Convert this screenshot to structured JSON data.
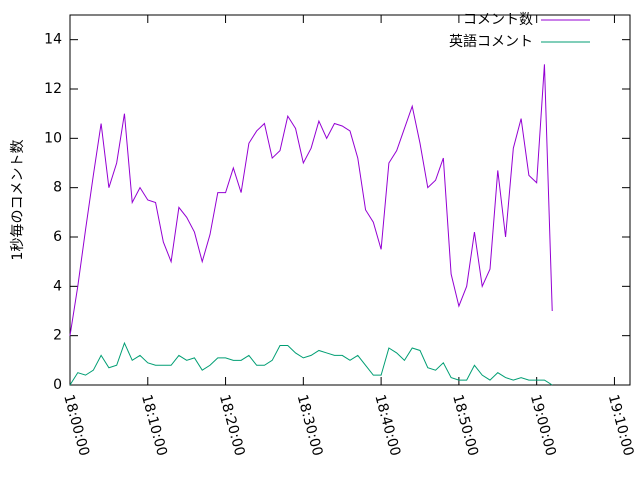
{
  "chart_data": {
    "type": "line",
    "y_label": "1秒毎のコメント数",
    "x": [
      "18:00:00",
      "18:01:00",
      "18:02:00",
      "18:03:00",
      "18:04:00",
      "18:05:00",
      "18:06:00",
      "18:07:00",
      "18:08:00",
      "18:09:00",
      "18:10:00",
      "18:11:00",
      "18:12:00",
      "18:13:00",
      "18:14:00",
      "18:15:00",
      "18:16:00",
      "18:17:00",
      "18:18:00",
      "18:19:00",
      "18:20:00",
      "18:21:00",
      "18:22:00",
      "18:23:00",
      "18:24:00",
      "18:25:00",
      "18:26:00",
      "18:27:00",
      "18:28:00",
      "18:29:00",
      "18:30:00",
      "18:31:00",
      "18:32:00",
      "18:33:00",
      "18:34:00",
      "18:35:00",
      "18:36:00",
      "18:37:00",
      "18:38:00",
      "18:39:00",
      "18:40:00",
      "18:41:00",
      "18:42:00",
      "18:43:00",
      "18:44:00",
      "18:45:00",
      "18:46:00",
      "18:47:00",
      "18:48:00",
      "18:49:00",
      "18:50:00",
      "18:51:00",
      "18:52:00",
      "18:53:00",
      "18:54:00",
      "18:55:00",
      "18:56:00",
      "18:57:00",
      "18:58:00",
      "18:59:00",
      "19:00:00",
      "19:01:00",
      "19:02:00"
    ],
    "series": [
      {
        "name": "コメント数",
        "color": "#9400d3",
        "values": [
          2.0,
          4.0,
          6.3,
          8.5,
          10.6,
          8.0,
          9.0,
          11.0,
          7.4,
          8.0,
          7.5,
          7.4,
          5.8,
          5.0,
          7.2,
          6.8,
          6.2,
          5.0,
          6.1,
          7.8,
          7.8,
          8.8,
          7.8,
          9.8,
          10.3,
          10.6,
          9.2,
          9.5,
          10.9,
          10.4,
          9.0,
          9.6,
          10.7,
          10.0,
          10.6,
          10.5,
          10.3,
          9.2,
          7.1,
          6.6,
          5.5,
          9.0,
          9.5,
          10.4,
          11.3,
          9.8,
          8.0,
          8.3,
          9.2,
          4.5,
          3.2,
          4.0,
          6.2,
          4.0,
          4.7,
          8.7,
          6.0,
          9.6,
          10.8,
          8.5,
          8.2,
          13.0,
          3.0
        ]
      },
      {
        "name": "英語コメント",
        "color": "#009e73",
        "values": [
          0.0,
          0.5,
          0.4,
          0.6,
          1.2,
          0.7,
          0.8,
          1.7,
          1.0,
          1.2,
          0.9,
          0.8,
          0.8,
          0.8,
          1.2,
          1.0,
          1.1,
          0.6,
          0.8,
          1.1,
          1.1,
          1.0,
          1.0,
          1.2,
          0.8,
          0.8,
          1.0,
          1.6,
          1.6,
          1.3,
          1.1,
          1.2,
          1.4,
          1.3,
          1.2,
          1.2,
          1.0,
          1.2,
          0.8,
          0.4,
          0.4,
          1.5,
          1.3,
          1.0,
          1.5,
          1.4,
          0.7,
          0.6,
          0.9,
          0.3,
          0.2,
          0.2,
          0.8,
          0.4,
          0.2,
          0.5,
          0.3,
          0.2,
          0.3,
          0.2,
          0.2,
          0.2,
          0.0
        ]
      }
    ],
    "xlim": [
      "18:00:00",
      "19:12:00"
    ],
    "xticks": [
      "18:00:00",
      "18:10:00",
      "18:20:00",
      "18:30:00",
      "18:40:00",
      "18:50:00",
      "19:00:00",
      "19:10:00"
    ],
    "ylim": [
      0,
      15
    ],
    "yticks": [
      0,
      2,
      4,
      6,
      8,
      10,
      12,
      14
    ],
    "legend": "top-right"
  }
}
